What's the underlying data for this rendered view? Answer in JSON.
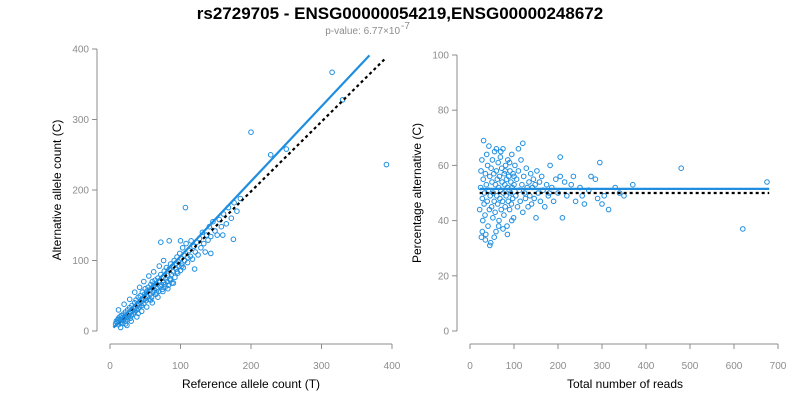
{
  "figure": {
    "title": "rs2729705 - ENSG00000054219,ENSG00000248672",
    "subtitle": "p-value: 6.77×10",
    "subtitle_exp": "-7"
  },
  "colors": {
    "points": "#1f8ee0",
    "fit": "#1f8ee0",
    "reference": "#000000",
    "axis": "#8c8c8c"
  },
  "chart_data": [
    {
      "type": "scatter",
      "xlabel": "Reference allele count (T)",
      "ylabel": "Alternative allele count (C)",
      "xlim": [
        0,
        400
      ],
      "ylim": [
        0,
        400
      ],
      "xticks": [
        "0",
        "100",
        "200",
        "300",
        "400"
      ],
      "yticks": [
        "0",
        "100",
        "200",
        "300",
        "400"
      ],
      "fit_line": {
        "x": [
          5,
          368
        ],
        "y": [
          5,
          391
        ],
        "style": "solid"
      },
      "reference_line": {
        "x": [
          5,
          392
        ],
        "y": [
          5,
          388
        ],
        "style": "dotted"
      },
      "points": [
        [
          8,
          10
        ],
        [
          9,
          14
        ],
        [
          10,
          12
        ],
        [
          11,
          16
        ],
        [
          12,
          9
        ],
        [
          12,
          18
        ],
        [
          13,
          14
        ],
        [
          14,
          20
        ],
        [
          15,
          12
        ],
        [
          15,
          16
        ],
        [
          16,
          22
        ],
        [
          17,
          15
        ],
        [
          18,
          19
        ],
        [
          18,
          11
        ],
        [
          19,
          24
        ],
        [
          20,
          17
        ],
        [
          21,
          21
        ],
        [
          22,
          14
        ],
        [
          22,
          27
        ],
        [
          23,
          19
        ],
        [
          24,
          23
        ],
        [
          25,
          16
        ],
        [
          25,
          30
        ],
        [
          26,
          21
        ],
        [
          27,
          25
        ],
        [
          28,
          33
        ],
        [
          29,
          18
        ],
        [
          30,
          27
        ],
        [
          30,
          22
        ],
        [
          31,
          36
        ],
        [
          32,
          29
        ],
        [
          33,
          24
        ],
        [
          34,
          31
        ],
        [
          35,
          40
        ],
        [
          35,
          27
        ],
        [
          36,
          33
        ],
        [
          37,
          44
        ],
        [
          38,
          30
        ],
        [
          39,
          36
        ],
        [
          40,
          48
        ],
        [
          40,
          25
        ],
        [
          41,
          38
        ],
        [
          42,
          34
        ],
        [
          43,
          50
        ],
        [
          44,
          41
        ],
        [
          45,
          36
        ],
        [
          46,
          55
        ],
        [
          47,
          44
        ],
        [
          48,
          39
        ],
        [
          49,
          52
        ],
        [
          50,
          46
        ],
        [
          50,
          60
        ],
        [
          51,
          43
        ],
        [
          52,
          56
        ],
        [
          53,
          49
        ],
        [
          54,
          62
        ],
        [
          55,
          45
        ],
        [
          56,
          58
        ],
        [
          57,
          52
        ],
        [
          58,
          66
        ],
        [
          59,
          48
        ],
        [
          60,
          61
        ],
        [
          60,
          70
        ],
        [
          61,
          55
        ],
        [
          62,
          64
        ],
        [
          63,
          58
        ],
        [
          64,
          72
        ],
        [
          65,
          52
        ],
        [
          66,
          67
        ],
        [
          67,
          60
        ],
        [
          68,
          75
        ],
        [
          69,
          56
        ],
        [
          70,
          70
        ],
        [
          71,
          63
        ],
        [
          72,
          80
        ],
        [
          73,
          66
        ],
        [
          74,
          59
        ],
        [
          75,
          76
        ],
        [
          76,
          69
        ],
        [
          77,
          85
        ],
        [
          78,
          62
        ],
        [
          79,
          74
        ],
        [
          80,
          90
        ],
        [
          81,
          70
        ],
        [
          82,
          79
        ],
        [
          83,
          65
        ],
        [
          84,
          88
        ],
        [
          85,
          74
        ],
        [
          86,
          95
        ],
        [
          87,
          80
        ],
        [
          88,
          68
        ],
        [
          89,
          92
        ],
        [
          90,
          84
        ],
        [
          91,
          100
        ],
        [
          92,
          76
        ],
        [
          93,
          96
        ],
        [
          94,
          88
        ],
        [
          95,
          105
        ],
        [
          96,
          82
        ],
        [
          97,
          98
        ],
        [
          98,
          91
        ],
        [
          99,
          110
        ],
        [
          100,
          86
        ],
        [
          101,
          103
        ],
        [
          102,
          95
        ],
        [
          103,
          118
        ],
        [
          104,
          90
        ],
        [
          105,
          108
        ],
        [
          106,
          100
        ],
        [
          108,
          124
        ],
        [
          110,
          97
        ],
        [
          112,
          114
        ],
        [
          114,
          106
        ],
        [
          115,
          128
        ],
        [
          117,
          102
        ],
        [
          119,
          120
        ],
        [
          121,
          112
        ],
        [
          123,
          126
        ],
        [
          125,
          108
        ],
        [
          127,
          131
        ],
        [
          129,
          118
        ],
        [
          131,
          140
        ],
        [
          133,
          124
        ],
        [
          135,
          112
        ],
        [
          137,
          136
        ],
        [
          139,
          129
        ],
        [
          141,
          148
        ],
        [
          143,
          134
        ],
        [
          146,
          155
        ],
        [
          149,
          142
        ],
        [
          152,
          136
        ],
        [
          155,
          158
        ],
        [
          158,
          148
        ],
        [
          161,
          166
        ],
        [
          165,
          152
        ],
        [
          168,
          175
        ],
        [
          172,
          160
        ],
        [
          176,
          182
        ],
        [
          180,
          170
        ],
        [
          185,
          188
        ],
        [
          12,
          30
        ],
        [
          20,
          38
        ],
        [
          28,
          45
        ],
        [
          35,
          55
        ],
        [
          42,
          62
        ],
        [
          48,
          70
        ],
        [
          55,
          78
        ],
        [
          62,
          84
        ],
        [
          70,
          92
        ],
        [
          76,
          100
        ],
        [
          24,
          8
        ],
        [
          30,
          14
        ],
        [
          38,
          20
        ],
        [
          45,
          28
        ],
        [
          52,
          34
        ],
        [
          60,
          40
        ],
        [
          68,
          48
        ],
        [
          75,
          56
        ],
        [
          82,
          60
        ],
        [
          90,
          68
        ],
        [
          15,
          5
        ],
        [
          22,
          10
        ],
        [
          40,
          32
        ],
        [
          58,
          44
        ],
        [
          66,
          54
        ],
        [
          78,
          66
        ],
        [
          86,
          72
        ],
        [
          95,
          84
        ],
        [
          102,
          92
        ],
        [
          110,
          104
        ],
        [
          72,
          126
        ],
        [
          84,
          128
        ],
        [
          100,
          128
        ],
        [
          107,
          175
        ],
        [
          120,
          88
        ],
        [
          143,
          110
        ],
        [
          160,
          136
        ],
        [
          175,
          130
        ],
        [
          200,
          282
        ],
        [
          228,
          250
        ],
        [
          250,
          258
        ],
        [
          315,
          367
        ],
        [
          330,
          328
        ],
        [
          392,
          236
        ]
      ]
    },
    {
      "type": "scatter",
      "xlabel": "Total number of reads",
      "ylabel": "Percentage alternative (C)",
      "xlim": [
        0,
        700
      ],
      "ylim": [
        0,
        100
      ],
      "xticks": [
        "0",
        "100",
        "200",
        "300",
        "400",
        "500",
        "600",
        "700"
      ],
      "yticks": [
        "0",
        "20",
        "40",
        "60",
        "80",
        "100"
      ],
      "fit_line": {
        "x": [
          22,
          680
        ],
        "y": [
          51.5,
          51.5
        ],
        "style": "solid"
      },
      "reference_line": {
        "x": [
          22,
          680
        ],
        "y": [
          50,
          50
        ],
        "style": "dotted"
      },
      "points": [
        [
          22,
          44
        ],
        [
          24,
          52
        ],
        [
          25,
          58
        ],
        [
          26,
          34
        ],
        [
          27,
          62
        ],
        [
          28,
          48
        ],
        [
          29,
          40
        ],
        [
          30,
          55
        ],
        [
          31,
          69
        ],
        [
          32,
          46
        ],
        [
          33,
          50
        ],
        [
          34,
          42
        ],
        [
          35,
          57
        ],
        [
          36,
          35
        ],
        [
          37,
          53
        ],
        [
          38,
          64
        ],
        [
          39,
          47
        ],
        [
          40,
          60
        ],
        [
          41,
          38
        ],
        [
          42,
          51
        ],
        [
          43,
          67
        ],
        [
          44,
          44
        ],
        [
          45,
          56
        ],
        [
          46,
          49
        ],
        [
          47,
          32
        ],
        [
          48,
          59
        ],
        [
          49,
          45
        ],
        [
          50,
          54
        ],
        [
          51,
          62
        ],
        [
          52,
          41
        ],
        [
          53,
          50
        ],
        [
          54,
          57
        ],
        [
          55,
          47
        ],
        [
          56,
          65
        ],
        [
          57,
          43
        ],
        [
          58,
          53
        ],
        [
          59,
          36
        ],
        [
          60,
          58
        ],
        [
          61,
          49
        ],
        [
          62,
          55
        ],
        [
          63,
          46
        ],
        [
          64,
          61
        ],
        [
          65,
          52
        ],
        [
          66,
          40
        ],
        [
          67,
          56
        ],
        [
          68,
          48
        ],
        [
          69,
          63
        ],
        [
          70,
          51
        ],
        [
          71,
          44
        ],
        [
          72,
          59
        ],
        [
          73,
          54
        ],
        [
          74,
          47
        ],
        [
          75,
          66
        ],
        [
          76,
          50
        ],
        [
          77,
          42
        ],
        [
          78,
          57
        ],
        [
          79,
          53
        ],
        [
          80,
          45
        ],
        [
          81,
          60
        ],
        [
          82,
          49
        ],
        [
          83,
          55
        ],
        [
          84,
          38
        ],
        [
          85,
          52
        ],
        [
          86,
          62
        ],
        [
          87,
          47
        ],
        [
          88,
          56
        ],
        [
          89,
          51
        ],
        [
          90,
          44
        ],
        [
          91,
          58
        ],
        [
          92,
          50
        ],
        [
          93,
          54
        ],
        [
          94,
          46
        ],
        [
          95,
          64
        ],
        [
          96,
          52
        ],
        [
          97,
          48
        ],
        [
          98,
          57
        ],
        [
          99,
          41
        ],
        [
          100,
          53
        ],
        [
          102,
          60
        ],
        [
          104,
          49
        ],
        [
          106,
          55
        ],
        [
          108,
          45
        ],
        [
          110,
          58
        ],
        [
          112,
          51
        ],
        [
          114,
          47
        ],
        [
          116,
          62
        ],
        [
          118,
          53
        ],
        [
          120,
          43
        ],
        [
          122,
          56
        ],
        [
          124,
          50
        ],
        [
          126,
          48
        ],
        [
          128,
          59
        ],
        [
          130,
          52
        ],
        [
          132,
          45
        ],
        [
          134,
          54
        ],
        [
          136,
          49
        ],
        [
          138,
          57
        ],
        [
          140,
          46
        ],
        [
          142,
          52
        ],
        [
          144,
          55
        ],
        [
          146,
          48
        ],
        [
          148,
          53
        ],
        [
          150,
          41
        ],
        [
          152,
          58
        ],
        [
          155,
          50
        ],
        [
          158,
          54
        ],
        [
          160,
          47
        ],
        [
          163,
          56
        ],
        [
          166,
          51
        ],
        [
          170,
          45
        ],
        [
          174,
          53
        ],
        [
          178,
          49
        ],
        [
          182,
          60
        ],
        [
          186,
          52
        ],
        [
          190,
          47
        ],
        [
          195,
          55
        ],
        [
          200,
          50
        ],
        [
          205,
          63
        ],
        [
          210,
          41
        ],
        [
          215,
          54
        ],
        [
          220,
          49
        ],
        [
          230,
          53
        ],
        [
          240,
          47
        ],
        [
          250,
          52
        ],
        [
          260,
          46
        ],
        [
          270,
          51
        ],
        [
          285,
          55
        ],
        [
          290,
          48
        ],
        [
          295,
          61
        ],
        [
          300,
          46
        ],
        [
          305,
          49
        ],
        [
          315,
          44
        ],
        [
          330,
          52
        ],
        [
          340,
          50
        ],
        [
          350,
          49
        ],
        [
          370,
          53
        ],
        [
          480,
          59
        ],
        [
          620,
          37
        ],
        [
          675,
          54
        ],
        [
          28,
          36
        ],
        [
          35,
          33
        ],
        [
          45,
          31
        ],
        [
          55,
          34
        ],
        [
          65,
          38
        ],
        [
          75,
          37
        ],
        [
          85,
          35
        ],
        [
          95,
          40
        ],
        [
          110,
          66
        ],
        [
          120,
          68
        ],
        [
          60,
          66
        ],
        [
          70,
          65
        ],
        [
          80,
          58
        ],
        [
          90,
          61
        ],
        [
          100,
          56
        ],
        [
          180,
          50
        ],
        [
          205,
          56
        ],
        [
          235,
          56
        ],
        [
          255,
          49
        ],
        [
          275,
          56
        ]
      ]
    }
  ]
}
